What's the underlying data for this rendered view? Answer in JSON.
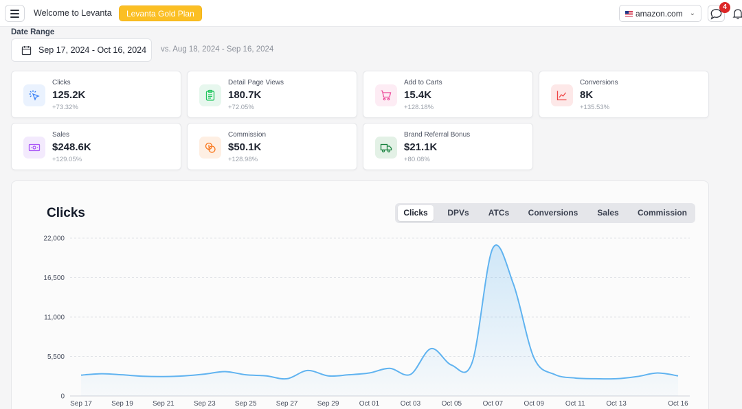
{
  "header": {
    "welcome": "Welcome to Levanta",
    "plan": "Levanta Gold Plan",
    "marketplace": "amazon.com",
    "notification_count": "4"
  },
  "date_range": {
    "label": "Date Range",
    "value": "Sep 17, 2024 - Oct 16, 2024",
    "compare": "vs. Aug 18, 2024 - Sep 16, 2024"
  },
  "metrics": [
    {
      "label": "Clicks",
      "value": "125.2K",
      "change": "+73.32%",
      "icon": "cursor-click-icon",
      "color": "#3b82f6",
      "bg": "#eaf2fe"
    },
    {
      "label": "Detail Page Views",
      "value": "180.7K",
      "change": "+72.05%",
      "icon": "clipboard-icon",
      "color": "#22c55e",
      "bg": "#e7f7ee"
    },
    {
      "label": "Add to Carts",
      "value": "15.4K",
      "change": "+128.18%",
      "icon": "cart-icon",
      "color": "#ec4899",
      "bg": "#fdecf4"
    },
    {
      "label": "Conversions",
      "value": "8K",
      "change": "+135.53%",
      "icon": "trend-chart-icon",
      "color": "#ef4444",
      "bg": "#fde8e8"
    },
    {
      "label": "Sales",
      "value": "$248.6K",
      "change": "+129.05%",
      "icon": "cash-icon",
      "color": "#a855f7",
      "bg": "#f3eafd"
    },
    {
      "label": "Commission",
      "value": "$50.1K",
      "change": "+128.98%",
      "icon": "coins-icon",
      "color": "#f97316",
      "bg": "#feefe3"
    },
    {
      "label": "Brand Referral Bonus",
      "value": "$21.1K",
      "change": "+80.08%",
      "icon": "truck-icon",
      "color": "#15803d",
      "bg": "#e3f1e6"
    }
  ],
  "chart_tabs": [
    "Clicks",
    "DPVs",
    "ATCs",
    "Conversions",
    "Sales",
    "Commission"
  ],
  "active_tab": "Clicks",
  "chart_data": {
    "type": "area",
    "title": "Clicks",
    "x": [
      "Sep 17",
      "Sep 18",
      "Sep 19",
      "Sep 20",
      "Sep 21",
      "Sep 22",
      "Sep 23",
      "Sep 24",
      "Sep 25",
      "Sep 26",
      "Sep 27",
      "Sep 28",
      "Sep 29",
      "Sep 30",
      "Oct 01",
      "Oct 02",
      "Oct 03",
      "Oct 04",
      "Oct 05",
      "Oct 06",
      "Oct 07",
      "Oct 08",
      "Oct 09",
      "Oct 10",
      "Oct 11",
      "Oct 12",
      "Oct 13",
      "Oct 14",
      "Oct 15",
      "Oct 16"
    ],
    "x_tick_labels": [
      "Sep 17",
      "Sep 19",
      "Sep 21",
      "Sep 23",
      "Sep 25",
      "Sep 27",
      "Sep 29",
      "Oct 01",
      "Oct 03",
      "Oct 05",
      "Oct 07",
      "Oct 09",
      "Oct 11",
      "Oct 13",
      "Oct 16"
    ],
    "values": [
      2900,
      3100,
      2950,
      2750,
      2700,
      2800,
      3050,
      3400,
      2950,
      2800,
      2400,
      3550,
      2800,
      2950,
      3200,
      3850,
      3000,
      6600,
      4300,
      4700,
      20600,
      15600,
      5300,
      3000,
      2500,
      2400,
      2400,
      2700,
      3200,
      2800
    ],
    "y_ticks": [
      0,
      5500,
      11000,
      16500,
      22000
    ],
    "y_tick_labels": [
      "0",
      "5,500",
      "11,000",
      "16,500",
      "22,000"
    ],
    "ylim": [
      0,
      22000
    ],
    "grid": true,
    "line_color": "#60b3f0"
  }
}
